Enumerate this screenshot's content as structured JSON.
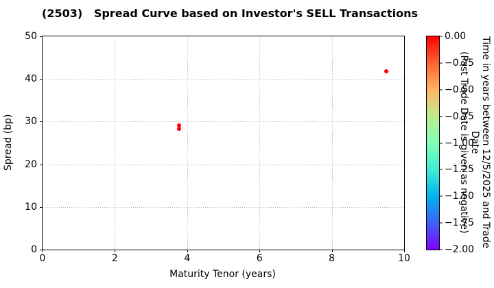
{
  "chart_data": {
    "type": "scatter",
    "title": "(2503)   Spread Curve based on Investor's SELL Transactions",
    "xlabel": "Maturity Tenor (years)",
    "ylabel": "Spread (bp)",
    "xlim": [
      0,
      10
    ],
    "ylim": [
      0,
      50
    ],
    "xticks": [
      0,
      2,
      4,
      6,
      8,
      10
    ],
    "yticks": [
      0,
      10,
      20,
      30,
      40,
      50
    ],
    "grid": true,
    "grid_style": "dotted",
    "points": [
      {
        "x": 3.77,
        "y": 29.1,
        "time_value": 0.0,
        "color": "#ff0000"
      },
      {
        "x": 3.77,
        "y": 28.3,
        "time_value": 0.0,
        "color": "#ff0000"
      },
      {
        "x": 9.51,
        "y": 41.8,
        "time_value": 0.0,
        "color": "#ff0000"
      }
    ],
    "colorbar": {
      "label": "Time in years between 12/5/2025 and Trade Date\n(Past Trade Date is given as negative)",
      "tick_labels": [
        "0.00",
        "−0.25",
        "−0.50",
        "−0.75",
        "−1.00",
        "−1.25",
        "−1.50",
        "−1.75",
        "−2.00"
      ],
      "range_top": 0.0,
      "range_bottom": -2.0,
      "colormap": "rainbow",
      "gradient_stops": [
        "#ff0000",
        "#ff6232",
        "#ffb462",
        "#bfec8e",
        "#80ffb4",
        "#40ecd4",
        "#00b4ec",
        "#4062fa",
        "#8000ff"
      ]
    }
  }
}
